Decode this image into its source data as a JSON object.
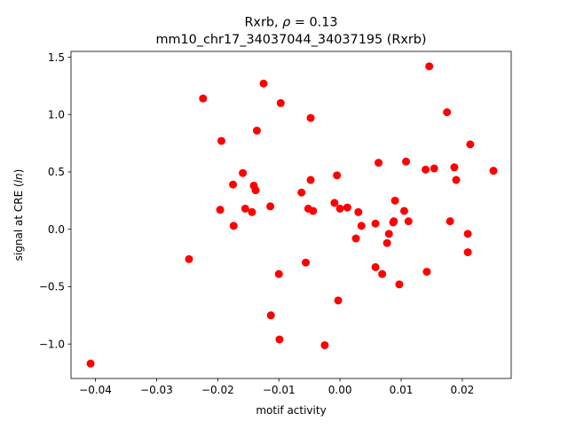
{
  "chart_data": {
    "type": "scatter",
    "title_line1_prefix": "Rxrb, ",
    "title_line1_rho": "ρ",
    "title_line1_suffix": " = 0.13",
    "title_line2": "mm10_chr17_34037044_34037195 (Rxrb)",
    "xlabel": "motif activity",
    "ylabel_prefix": "signal at CRE (",
    "ylabel_italic": "ln",
    "ylabel_suffix": ")",
    "xlim": [
      -0.044,
      0.028
    ],
    "ylim": [
      -1.3,
      1.55
    ],
    "xticks": [
      -0.04,
      -0.03,
      -0.02,
      -0.01,
      0.0,
      0.01,
      0.02
    ],
    "xtick_labels": [
      "−0.04",
      "−0.03",
      "−0.02",
      "−0.01",
      "0.00",
      "0.01",
      "0.02"
    ],
    "yticks": [
      -1.0,
      -0.5,
      0.0,
      0.5,
      1.0,
      1.5
    ],
    "ytick_labels": [
      "−1.0",
      "−0.5",
      "0.0",
      "0.5",
      "1.0",
      "1.5"
    ],
    "grid": false,
    "marker_color": "#ff0000",
    "points": [
      {
        "x": -0.0408,
        "y": -1.17
      },
      {
        "x": -0.0247,
        "y": -0.26
      },
      {
        "x": -0.0224,
        "y": 1.14
      },
      {
        "x": -0.0194,
        "y": 0.77
      },
      {
        "x": -0.0196,
        "y": 0.17
      },
      {
        "x": -0.0175,
        "y": 0.39
      },
      {
        "x": -0.0174,
        "y": 0.03
      },
      {
        "x": -0.0159,
        "y": 0.49
      },
      {
        "x": -0.0155,
        "y": 0.18
      },
      {
        "x": -0.0144,
        "y": 0.15
      },
      {
        "x": -0.0141,
        "y": 0.38
      },
      {
        "x": -0.0138,
        "y": 0.34
      },
      {
        "x": -0.0136,
        "y": 0.86
      },
      {
        "x": -0.0125,
        "y": 1.27
      },
      {
        "x": -0.0114,
        "y": 0.2
      },
      {
        "x": -0.0113,
        "y": -0.75
      },
      {
        "x": -0.01,
        "y": -0.39
      },
      {
        "x": -0.0099,
        "y": -0.96
      },
      {
        "x": -0.0097,
        "y": 1.1
      },
      {
        "x": -0.0063,
        "y": 0.32
      },
      {
        "x": -0.0056,
        "y": -0.29
      },
      {
        "x": -0.0052,
        "y": 0.18
      },
      {
        "x": -0.0048,
        "y": 0.97
      },
      {
        "x": -0.0048,
        "y": 0.43
      },
      {
        "x": -0.0044,
        "y": 0.16
      },
      {
        "x": -0.0025,
        "y": -1.01
      },
      {
        "x": -0.0009,
        "y": 0.23
      },
      {
        "x": -0.0005,
        "y": 0.47
      },
      {
        "x": -0.0003,
        "y": -0.62
      },
      {
        "x": 0.0,
        "y": 0.18
      },
      {
        "x": 0.0012,
        "y": 0.19
      },
      {
        "x": 0.0026,
        "y": -0.08
      },
      {
        "x": 0.003,
        "y": 0.15
      },
      {
        "x": 0.0035,
        "y": 0.03
      },
      {
        "x": 0.0058,
        "y": -0.33
      },
      {
        "x": 0.0058,
        "y": 0.05
      },
      {
        "x": 0.0063,
        "y": 0.58
      },
      {
        "x": 0.0069,
        "y": -0.39
      },
      {
        "x": 0.0077,
        "y": -0.12
      },
      {
        "x": 0.008,
        "y": -0.04
      },
      {
        "x": 0.0087,
        "y": 0.06
      },
      {
        "x": 0.0088,
        "y": 0.07
      },
      {
        "x": 0.009,
        "y": 0.25
      },
      {
        "x": 0.0097,
        "y": -0.48
      },
      {
        "x": 0.0105,
        "y": 0.16
      },
      {
        "x": 0.0108,
        "y": 0.59
      },
      {
        "x": 0.0112,
        "y": 0.07
      },
      {
        "x": 0.014,
        "y": 0.52
      },
      {
        "x": 0.0142,
        "y": -0.37
      },
      {
        "x": 0.0146,
        "y": 1.42
      },
      {
        "x": 0.0154,
        "y": 0.53
      },
      {
        "x": 0.0175,
        "y": 1.02
      },
      {
        "x": 0.018,
        "y": 0.07
      },
      {
        "x": 0.0187,
        "y": 0.54
      },
      {
        "x": 0.019,
        "y": 0.43
      },
      {
        "x": 0.0209,
        "y": -0.04
      },
      {
        "x": 0.0209,
        "y": -0.2
      },
      {
        "x": 0.0213,
        "y": 0.74
      },
      {
        "x": 0.0251,
        "y": 0.51
      }
    ]
  }
}
